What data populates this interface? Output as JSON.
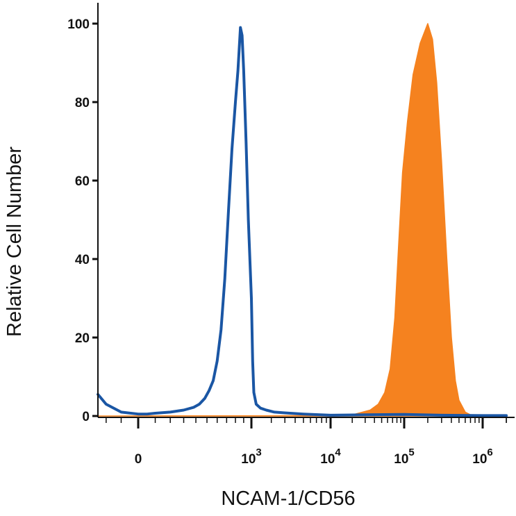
{
  "chart_data": {
    "type": "area",
    "title": "",
    "xlabel": "NCAM-1/CD56",
    "ylabel": "Relative Cell Number",
    "x_scale": "biexponential",
    "x_ticks": [
      {
        "base": "0",
        "exp": ""
      },
      {
        "base": "10",
        "exp": "3"
      },
      {
        "base": "10",
        "exp": "4"
      },
      {
        "base": "10",
        "exp": "5"
      },
      {
        "base": "10",
        "exp": "6"
      }
    ],
    "y_ticks": [
      "0",
      "20",
      "40",
      "60",
      "80",
      "100"
    ],
    "ylim": [
      0,
      100
    ],
    "grid": false,
    "legend": "none",
    "series": [
      {
        "style": "outline",
        "color": "#1a56a4",
        "points": [
          [
            -300,
            5.5
          ],
          [
            -200,
            3
          ],
          [
            -100,
            1
          ],
          [
            0,
            0.5
          ],
          [
            50,
            0.5
          ],
          [
            100,
            0.7
          ],
          [
            200,
            1
          ],
          [
            300,
            1.5
          ],
          [
            380,
            2.2
          ],
          [
            430,
            3
          ],
          [
            480,
            4.5
          ],
          [
            520,
            6.5
          ],
          [
            560,
            9
          ],
          [
            600,
            14
          ],
          [
            640,
            22
          ],
          [
            680,
            35
          ],
          [
            720,
            52
          ],
          [
            760,
            68
          ],
          [
            800,
            80
          ],
          [
            830,
            88
          ],
          [
            860,
            99
          ],
          [
            880,
            97
          ],
          [
            900,
            88
          ],
          [
            930,
            70
          ],
          [
            960,
            50
          ],
          [
            1000,
            30
          ],
          [
            1050,
            14
          ],
          [
            1100,
            6
          ],
          [
            1200,
            3
          ],
          [
            1400,
            2
          ],
          [
            1700,
            1.5
          ],
          [
            2200,
            1
          ],
          [
            3000,
            0.8
          ],
          [
            5000,
            0.5
          ],
          [
            10000,
            0.2
          ],
          [
            30000,
            0.3
          ],
          [
            100000,
            0.4
          ],
          [
            300000,
            0.2
          ],
          [
            1000000,
            0.1
          ],
          [
            2000000,
            0.1
          ]
        ]
      },
      {
        "style": "filled",
        "color": "#f5821f",
        "points": [
          [
            -300,
            0
          ],
          [
            10000,
            0.1
          ],
          [
            20000,
            0.3
          ],
          [
            35000,
            1.5
          ],
          [
            45000,
            3
          ],
          [
            55000,
            6
          ],
          [
            65000,
            12
          ],
          [
            75000,
            25
          ],
          [
            85000,
            45
          ],
          [
            95000,
            62
          ],
          [
            110000,
            75
          ],
          [
            130000,
            87
          ],
          [
            160000,
            95
          ],
          [
            200000,
            100
          ],
          [
            230000,
            96
          ],
          [
            260000,
            85
          ],
          [
            300000,
            65
          ],
          [
            350000,
            40
          ],
          [
            400000,
            20
          ],
          [
            450000,
            9
          ],
          [
            500000,
            4
          ],
          [
            600000,
            1
          ],
          [
            700000,
            0.3
          ],
          [
            800000,
            0
          ],
          [
            2000000,
            0
          ]
        ]
      }
    ]
  }
}
